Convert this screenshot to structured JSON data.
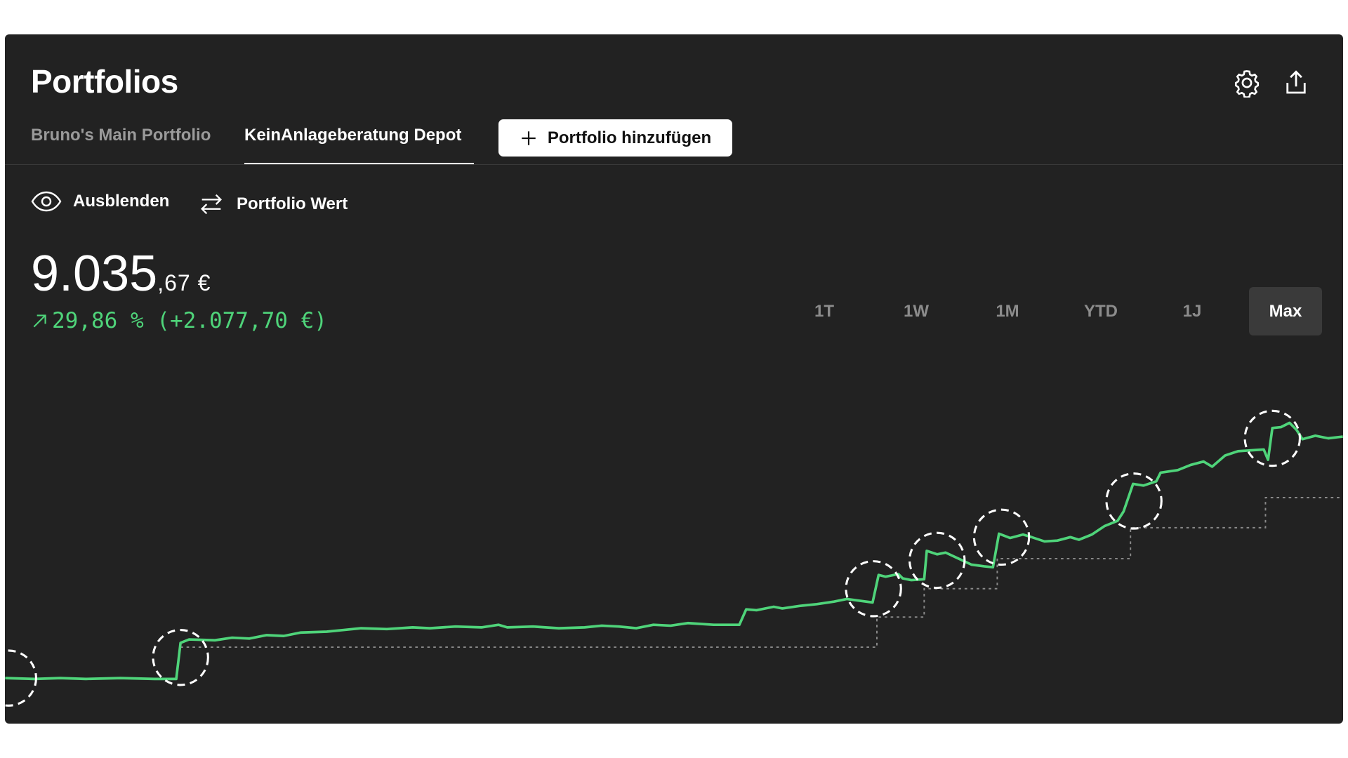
{
  "header": {
    "title": "Portfolios"
  },
  "tabs": {
    "items": [
      "Bruno's Main Portfolio",
      "KeinAnlageberatung Depot"
    ],
    "active": 1
  },
  "add_button": "Portfolio hinzufügen",
  "controls": {
    "hide": "Ausblenden",
    "mode": "Portfolio Wert"
  },
  "value": {
    "main": "9.035",
    "fraction": ",67 €",
    "change": "29,86 % (+2.077,70 €)"
  },
  "ranges": {
    "items": [
      "1T",
      "1W",
      "1M",
      "YTD",
      "1J",
      "Max"
    ],
    "active": 5
  }
}
